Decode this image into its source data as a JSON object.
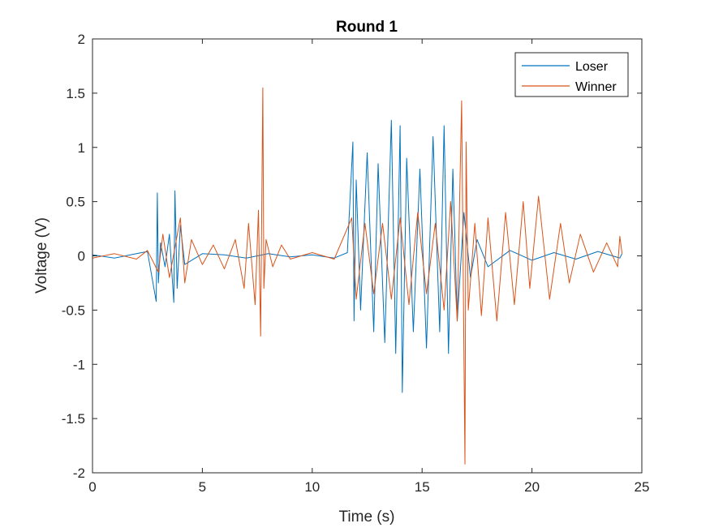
{
  "chart_data": {
    "type": "line",
    "title": "Round 1",
    "xlabel": "Time (s)",
    "ylabel": "Voltage (V)",
    "xlim": [
      0,
      25
    ],
    "ylim": [
      -2,
      2
    ],
    "xticks": [
      0,
      5,
      10,
      15,
      20,
      25
    ],
    "yticks": [
      -2,
      -1.5,
      -1,
      -0.5,
      0,
      0.5,
      1,
      1.5,
      2
    ],
    "xtick_labels": [
      "0",
      "5",
      "10",
      "15",
      "20",
      "25"
    ],
    "ytick_labels": [
      "-2",
      "-1.5",
      "-1",
      "-0.5",
      "0",
      "0.5",
      "1",
      "1.5",
      "2"
    ],
    "grid": false,
    "legend_position": "top-right",
    "series": [
      {
        "name": "Loser",
        "color": "#0072BD",
        "x": [
          0,
          1,
          2,
          2.5,
          2.9,
          2.95,
          3.0,
          3.1,
          3.3,
          3.5,
          3.7,
          3.75,
          3.85,
          4.0,
          4.2,
          5,
          6,
          7,
          8,
          9,
          10,
          11,
          11.6,
          11.85,
          11.9,
          12.0,
          12.2,
          12.5,
          12.8,
          13.0,
          13.3,
          13.6,
          13.8,
          14.0,
          14.1,
          14.3,
          14.6,
          14.9,
          15.2,
          15.5,
          15.8,
          16.0,
          16.2,
          16.4,
          16.6,
          16.9,
          17.2,
          17.5,
          18,
          19,
          20,
          21,
          22,
          23,
          24,
          24.1
        ],
        "y": [
          0.01,
          -0.02,
          0.02,
          0.04,
          -0.42,
          0.58,
          -0.25,
          0.12,
          -0.1,
          0.2,
          -0.43,
          0.6,
          -0.3,
          0.28,
          -0.08,
          0.02,
          0.01,
          -0.02,
          0.02,
          -0.01,
          0.01,
          -0.02,
          0.03,
          1.05,
          -0.6,
          0.7,
          -0.5,
          0.95,
          -0.7,
          0.85,
          -0.8,
          1.25,
          -0.9,
          1.2,
          -1.26,
          0.9,
          -0.7,
          0.8,
          -0.85,
          1.1,
          -0.7,
          1.2,
          -0.9,
          0.8,
          -0.6,
          0.4,
          -0.2,
          0.15,
          -0.1,
          0.05,
          -0.04,
          0.03,
          -0.03,
          0.04,
          -0.02,
          0.02
        ]
      },
      {
        "name": "Winner",
        "color": "#D95319",
        "x": [
          0,
          1,
          2,
          2.5,
          3.0,
          3.2,
          3.5,
          4.0,
          4.2,
          4.5,
          5.0,
          5.5,
          6.0,
          6.5,
          6.9,
          7.1,
          7.4,
          7.55,
          7.65,
          7.75,
          7.8,
          7.9,
          8.2,
          8.6,
          9,
          10,
          11,
          11.8,
          12.0,
          12.4,
          12.8,
          13.2,
          13.6,
          14.0,
          14.4,
          14.8,
          15.2,
          15.6,
          16.0,
          16.3,
          16.6,
          16.8,
          16.95,
          17.0,
          17.1,
          17.4,
          17.7,
          18.0,
          18.4,
          18.8,
          19.2,
          19.6,
          19.9,
          20.3,
          20.8,
          21.3,
          21.7,
          22.2,
          22.8,
          23.4,
          23.9,
          24.0,
          24.1
        ],
        "y": [
          -0.02,
          0.02,
          -0.03,
          0.05,
          -0.15,
          0.2,
          -0.2,
          0.35,
          -0.25,
          0.15,
          -0.08,
          0.1,
          -0.12,
          0.15,
          -0.3,
          0.3,
          -0.45,
          0.42,
          -0.74,
          1.55,
          -0.3,
          0.15,
          -0.1,
          0.1,
          -0.03,
          0.03,
          -0.03,
          0.35,
          -0.4,
          0.3,
          -0.35,
          0.3,
          -0.4,
          0.35,
          -0.45,
          0.4,
          -0.35,
          0.3,
          -0.5,
          0.5,
          -0.6,
          1.43,
          -1.92,
          1.05,
          -0.5,
          0.3,
          -0.55,
          0.35,
          -0.6,
          0.4,
          -0.45,
          0.5,
          -0.3,
          0.55,
          -0.4,
          0.3,
          -0.25,
          0.2,
          -0.15,
          0.12,
          -0.1,
          0.18,
          0.02
        ]
      }
    ]
  }
}
